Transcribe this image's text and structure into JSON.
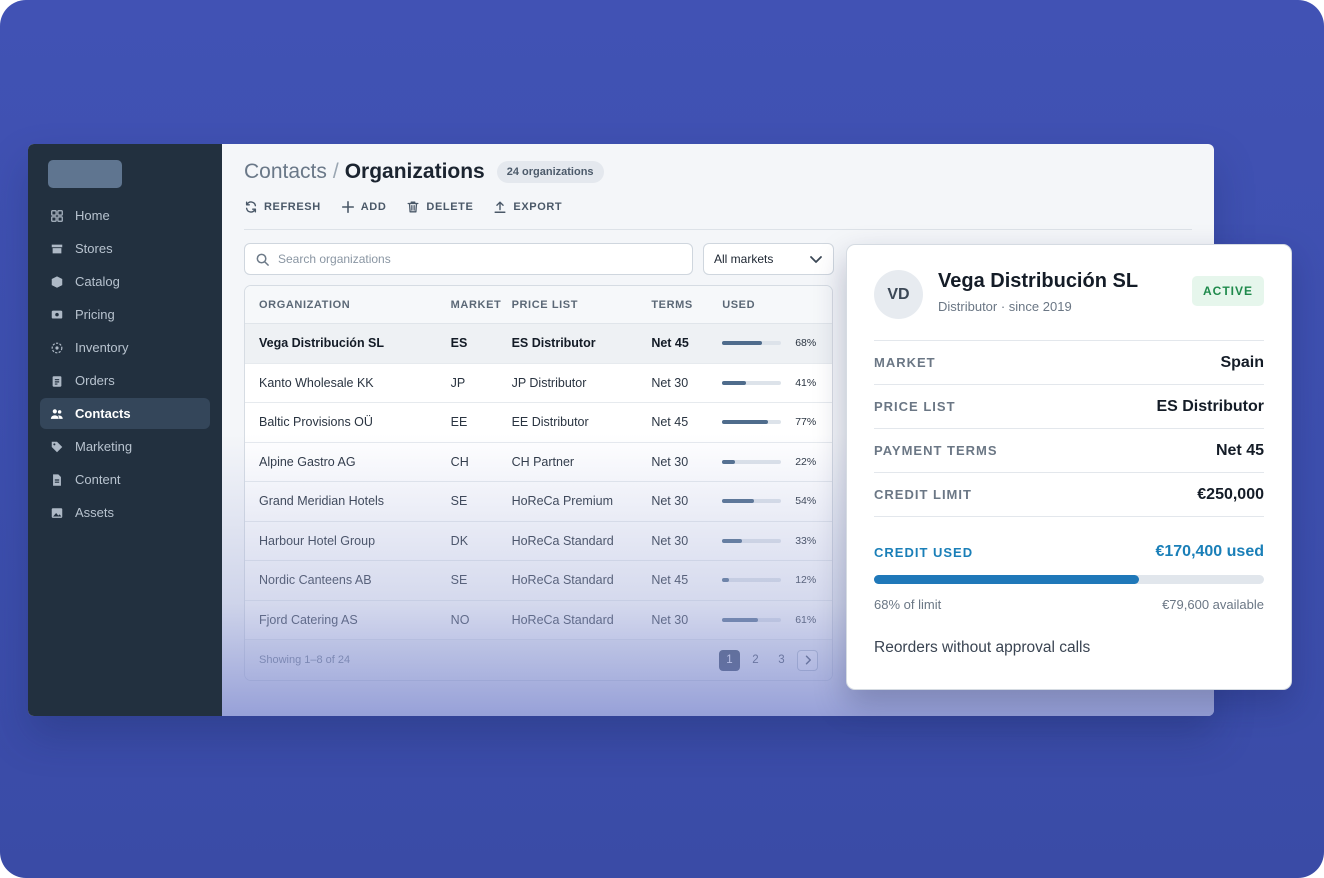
{
  "sidebar": {
    "items": [
      {
        "label": "Home",
        "icon": "grid-icon",
        "name": "home"
      },
      {
        "label": "Stores",
        "icon": "store-icon",
        "name": "stores"
      },
      {
        "label": "Catalog",
        "icon": "box-icon",
        "name": "catalog"
      },
      {
        "label": "Pricing",
        "icon": "price-tag-icon",
        "name": "pricing"
      },
      {
        "label": "Inventory",
        "icon": "inventory-icon",
        "name": "inventory"
      },
      {
        "label": "Orders",
        "icon": "clipboard-icon",
        "name": "orders"
      },
      {
        "label": "Contacts",
        "icon": "users-icon",
        "name": "contacts",
        "active": true
      },
      {
        "label": "Marketing",
        "icon": "tag-icon",
        "name": "marketing"
      },
      {
        "label": "Content",
        "icon": "document-icon",
        "name": "content"
      },
      {
        "label": "Assets",
        "icon": "image-icon",
        "name": "assets"
      }
    ]
  },
  "header": {
    "parent": "Contacts",
    "separator": "/",
    "current": "Organizations",
    "count": "24 organizations"
  },
  "toolbar": {
    "refresh": "REFRESH",
    "add": "ADD",
    "delete": "DELETE",
    "export": "EXPORT"
  },
  "filters": {
    "search_placeholder": "Search organizations",
    "market_value": "All markets"
  },
  "table": {
    "columns": [
      "ORGANIZATION",
      "MARKET",
      "PRICE LIST",
      "TERMS",
      "USED"
    ],
    "rows": [
      {
        "org": "Vega Distribución SL",
        "market": "ES",
        "price_list": "ES Distributor",
        "terms": "Net 45",
        "used": 0.68,
        "used_label": "68%"
      },
      {
        "org": "Kanto Wholesale KK",
        "market": "JP",
        "price_list": "JP Distributor",
        "terms": "Net 30",
        "used": 0.41,
        "used_label": "41%"
      },
      {
        "org": "Baltic Provisions OÜ",
        "market": "EE",
        "price_list": "EE Distributor",
        "terms": "Net 45",
        "used": 0.77,
        "used_label": "77%"
      },
      {
        "org": "Alpine Gastro AG",
        "market": "CH",
        "price_list": "CH Partner",
        "terms": "Net 30",
        "used": 0.22,
        "used_label": "22%"
      },
      {
        "org": "Grand Meridian Hotels",
        "market": "SE",
        "price_list": "HoReCa Premium",
        "terms": "Net 30",
        "used": 0.54,
        "used_label": "54%"
      },
      {
        "org": "Harbour Hotel Group",
        "market": "DK",
        "price_list": "HoReCa Standard",
        "terms": "Net 30",
        "used": 0.33,
        "used_label": "33%"
      },
      {
        "org": "Nordic Canteens AB",
        "market": "SE",
        "price_list": "HoReCa Standard",
        "terms": "Net 45",
        "used": 0.12,
        "used_label": "12%"
      },
      {
        "org": "Fjord Catering AS",
        "market": "NO",
        "price_list": "HoReCa Standard",
        "terms": "Net 30",
        "used": 0.61,
        "used_label": "61%"
      }
    ],
    "footer": "Showing 1–8 of 24",
    "pages": [
      "1",
      "2",
      "3"
    ]
  },
  "detail": {
    "initials": "VD",
    "name": "Vega Distribución SL",
    "subtitle": "Distributor · since 2019",
    "status": "ACTIVE",
    "fields": [
      {
        "key": "MARKET",
        "value": "Spain"
      },
      {
        "key": "PRICE LIST",
        "value": "ES Distributor"
      },
      {
        "key": "PAYMENT TERMS",
        "value": "Net 45"
      },
      {
        "key": "CREDIT LIMIT",
        "value": "€250,000"
      }
    ],
    "credit": {
      "label": "CREDIT USED",
      "value": "€170,400 used",
      "fraction": 0.68,
      "percent_label": "68% of limit",
      "available": "€79,600 available"
    },
    "note": "Reorders without approval calls"
  },
  "colors": {
    "background": "#4152b4",
    "sidebar": "#22303f",
    "accent": "#1f78b9",
    "active_green": "#1f8a4c"
  }
}
